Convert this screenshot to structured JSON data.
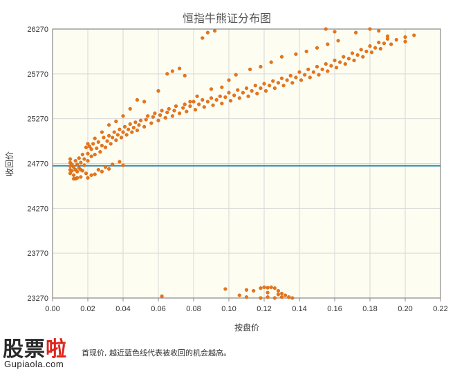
{
  "chart_data": {
    "type": "scatter",
    "title": "恒指牛熊证分布图",
    "xlabel": "按盘价",
    "ylabel": "收回价",
    "xlim": [
      0.0,
      0.22
    ],
    "ylim": [
      23270,
      26270
    ],
    "x_ticks": [
      "0.00",
      "0.02",
      "0.04",
      "0.06",
      "0.08",
      "0.10",
      "0.12",
      "0.14",
      "0.16",
      "0.18",
      "0.20",
      "0.22"
    ],
    "y_ticks": [
      "23270",
      "23770",
      "24270",
      "24770",
      "25270",
      "25770",
      "26270"
    ],
    "grid": true,
    "reference_line": {
      "y": 24745,
      "color": "#2e8fb0"
    },
    "point_color": "#e8751a",
    "plot_background": "#fdfdf2",
    "series": [
      {
        "points": [
          [
            0.01,
            24660
          ],
          [
            0.01,
            24700
          ],
          [
            0.01,
            24740
          ],
          [
            0.01,
            24780
          ],
          [
            0.01,
            24820
          ],
          [
            0.011,
            24690
          ],
          [
            0.011,
            24760
          ],
          [
            0.012,
            24640
          ],
          [
            0.012,
            24730
          ],
          [
            0.013,
            24700
          ],
          [
            0.013,
            24800
          ],
          [
            0.014,
            24680
          ],
          [
            0.014,
            24760
          ],
          [
            0.015,
            24720
          ],
          [
            0.015,
            24830
          ],
          [
            0.016,
            24700
          ],
          [
            0.016,
            24780
          ],
          [
            0.017,
            24870
          ],
          [
            0.018,
            24750
          ],
          [
            0.018,
            24820
          ],
          [
            0.019,
            24950
          ],
          [
            0.02,
            24800
          ],
          [
            0.02,
            24880
          ],
          [
            0.021,
            24960
          ],
          [
            0.022,
            24850
          ],
          [
            0.022,
            24930
          ],
          [
            0.023,
            24990
          ],
          [
            0.024,
            24870
          ],
          [
            0.025,
            24940
          ],
          [
            0.026,
            25010
          ],
          [
            0.027,
            24900
          ],
          [
            0.028,
            24970
          ],
          [
            0.029,
            25060
          ],
          [
            0.03,
            24950
          ],
          [
            0.031,
            25020
          ],
          [
            0.032,
            25080
          ],
          [
            0.033,
            24990
          ],
          [
            0.034,
            25060
          ],
          [
            0.035,
            25120
          ],
          [
            0.036,
            25030
          ],
          [
            0.037,
            25090
          ],
          [
            0.038,
            25150
          ],
          [
            0.039,
            25060
          ],
          [
            0.04,
            25120
          ],
          [
            0.041,
            25180
          ],
          [
            0.042,
            25090
          ],
          [
            0.043,
            25150
          ],
          [
            0.044,
            25210
          ],
          [
            0.045,
            25120
          ],
          [
            0.046,
            25170
          ],
          [
            0.047,
            25230
          ],
          [
            0.048,
            25140
          ],
          [
            0.049,
            25200
          ],
          [
            0.05,
            25250
          ],
          [
            0.052,
            25180
          ],
          [
            0.053,
            25260
          ],
          [
            0.054,
            25300
          ],
          [
            0.056,
            25220
          ],
          [
            0.057,
            25290
          ],
          [
            0.058,
            25330
          ],
          [
            0.06,
            25250
          ],
          [
            0.061,
            25310
          ],
          [
            0.062,
            25360
          ],
          [
            0.064,
            25280
          ],
          [
            0.065,
            25340
          ],
          [
            0.066,
            25380
          ],
          [
            0.068,
            25300
          ],
          [
            0.069,
            25360
          ],
          [
            0.07,
            25410
          ],
          [
            0.072,
            25330
          ],
          [
            0.074,
            25390
          ],
          [
            0.075,
            25430
          ],
          [
            0.076,
            25350
          ],
          [
            0.078,
            25410
          ],
          [
            0.08,
            25460
          ],
          [
            0.081,
            25370
          ],
          [
            0.083,
            25430
          ],
          [
            0.085,
            25480
          ],
          [
            0.086,
            25400
          ],
          [
            0.088,
            25460
          ],
          [
            0.09,
            25500
          ],
          [
            0.091,
            25420
          ],
          [
            0.093,
            25480
          ],
          [
            0.095,
            25520
          ],
          [
            0.096,
            25440
          ],
          [
            0.098,
            25510
          ],
          [
            0.1,
            25560
          ],
          [
            0.101,
            25470
          ],
          [
            0.103,
            25530
          ],
          [
            0.105,
            25590
          ],
          [
            0.106,
            25500
          ],
          [
            0.108,
            25560
          ],
          [
            0.11,
            25610
          ],
          [
            0.111,
            25520
          ],
          [
            0.113,
            25580
          ],
          [
            0.115,
            25640
          ],
          [
            0.116,
            25550
          ],
          [
            0.118,
            25610
          ],
          [
            0.12,
            25660
          ],
          [
            0.121,
            25580
          ],
          [
            0.123,
            25640
          ],
          [
            0.125,
            25690
          ],
          [
            0.126,
            25610
          ],
          [
            0.128,
            25670
          ],
          [
            0.13,
            25720
          ],
          [
            0.131,
            25640
          ],
          [
            0.133,
            25700
          ],
          [
            0.135,
            25750
          ],
          [
            0.136,
            25670
          ],
          [
            0.138,
            25730
          ],
          [
            0.14,
            25790
          ],
          [
            0.141,
            25700
          ],
          [
            0.143,
            25760
          ],
          [
            0.145,
            25820
          ],
          [
            0.146,
            25730
          ],
          [
            0.148,
            25790
          ],
          [
            0.15,
            25850
          ],
          [
            0.151,
            25760
          ],
          [
            0.153,
            25820
          ],
          [
            0.155,
            25880
          ],
          [
            0.156,
            25800
          ],
          [
            0.158,
            25860
          ],
          [
            0.16,
            25920
          ],
          [
            0.161,
            25840
          ],
          [
            0.163,
            25900
          ],
          [
            0.165,
            25960
          ],
          [
            0.166,
            25880
          ],
          [
            0.168,
            25940
          ],
          [
            0.17,
            26000
          ],
          [
            0.171,
            25920
          ],
          [
            0.173,
            25980
          ],
          [
            0.175,
            26040
          ],
          [
            0.176,
            25960
          ],
          [
            0.178,
            26020
          ],
          [
            0.18,
            26080
          ],
          [
            0.181,
            26010
          ],
          [
            0.183,
            26060
          ],
          [
            0.185,
            26120
          ],
          [
            0.186,
            26050
          ],
          [
            0.188,
            26110
          ],
          [
            0.19,
            26160
          ],
          [
            0.192,
            26100
          ],
          [
            0.195,
            26150
          ],
          [
            0.2,
            26180
          ],
          [
            0.155,
            26270
          ],
          [
            0.16,
            26240
          ],
          [
            0.172,
            26230
          ],
          [
            0.18,
            26270
          ],
          [
            0.185,
            26250
          ],
          [
            0.19,
            26190
          ],
          [
            0.2,
            26130
          ],
          [
            0.205,
            26200
          ],
          [
            0.013,
            24600
          ],
          [
            0.016,
            24620
          ],
          [
            0.02,
            24610
          ],
          [
            0.024,
            24650
          ],
          [
            0.028,
            24680
          ],
          [
            0.032,
            24710
          ],
          [
            0.04,
            24750
          ],
          [
            0.017,
            24690
          ],
          [
            0.014,
            24610
          ],
          [
            0.012,
            24600
          ],
          [
            0.019,
            24660
          ],
          [
            0.022,
            24640
          ],
          [
            0.026,
            24700
          ],
          [
            0.03,
            24730
          ],
          [
            0.034,
            24760
          ],
          [
            0.038,
            24790
          ],
          [
            0.02,
            24990
          ],
          [
            0.024,
            25050
          ],
          [
            0.028,
            25120
          ],
          [
            0.032,
            25200
          ],
          [
            0.036,
            25240
          ],
          [
            0.04,
            25300
          ],
          [
            0.044,
            25380
          ],
          [
            0.048,
            25480
          ],
          [
            0.052,
            25460
          ],
          [
            0.06,
            25580
          ],
          [
            0.065,
            25770
          ],
          [
            0.068,
            25800
          ],
          [
            0.072,
            25830
          ],
          [
            0.075,
            25750
          ],
          [
            0.085,
            26170
          ],
          [
            0.088,
            26230
          ],
          [
            0.092,
            26250
          ],
          [
            0.078,
            25460
          ],
          [
            0.082,
            25520
          ],
          [
            0.09,
            25600
          ],
          [
            0.096,
            25620
          ],
          [
            0.1,
            25700
          ],
          [
            0.104,
            25760
          ],
          [
            0.112,
            25820
          ],
          [
            0.118,
            25850
          ],
          [
            0.124,
            25900
          ],
          [
            0.13,
            25960
          ],
          [
            0.138,
            25990
          ],
          [
            0.144,
            26020
          ],
          [
            0.15,
            26060
          ],
          [
            0.156,
            26100
          ],
          [
            0.162,
            26140
          ],
          [
            0.11,
            23360
          ],
          [
            0.114,
            23350
          ],
          [
            0.118,
            23380
          ],
          [
            0.12,
            23390
          ],
          [
            0.122,
            23385
          ],
          [
            0.124,
            23390
          ],
          [
            0.126,
            23380
          ],
          [
            0.128,
            23350
          ],
          [
            0.13,
            23320
          ],
          [
            0.132,
            23300
          ],
          [
            0.134,
            23280
          ],
          [
            0.136,
            23270
          ],
          [
            0.118,
            23270
          ],
          [
            0.122,
            23280
          ],
          [
            0.126,
            23270
          ],
          [
            0.098,
            23370
          ],
          [
            0.106,
            23300
          ],
          [
            0.062,
            23290
          ],
          [
            0.122,
            23330
          ],
          [
            0.128,
            23310
          ],
          [
            0.11,
            23280
          ],
          [
            0.13,
            23280
          ]
        ]
      }
    ]
  },
  "footer": {
    "note": "首现价, 越近蓝色线代表被收回的机会越高。",
    "logo_text_dark": "股票",
    "logo_text_red": "啦",
    "logo_url": "Gupiaola.com"
  }
}
